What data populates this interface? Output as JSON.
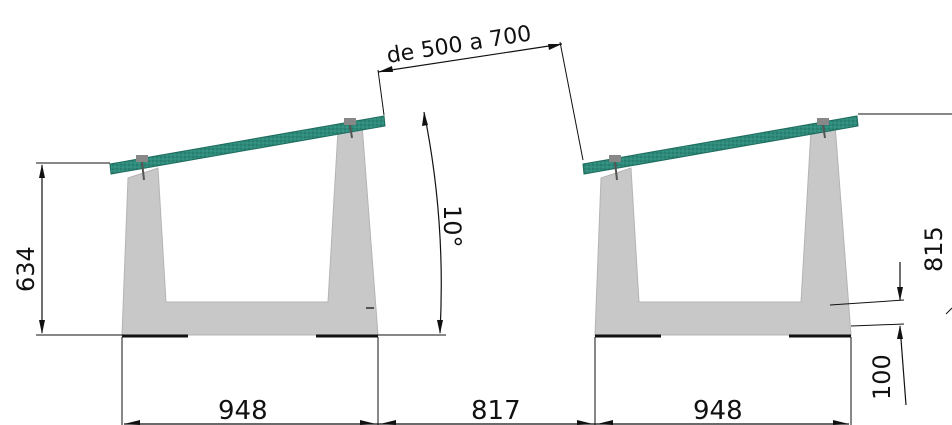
{
  "dimensions": {
    "spacing": "de 500 a 700",
    "height_left": "634",
    "angle": "10°",
    "height_right": "815",
    "width_left": "948",
    "gap": "817",
    "width_right": "948",
    "base_height": "100"
  },
  "colors": {
    "panel": "#2e8a7a",
    "panel_dark": "#1d6b5d",
    "concrete": "#c8c8c8",
    "concrete_edge": "#b0b0b0",
    "line": "#111111"
  }
}
